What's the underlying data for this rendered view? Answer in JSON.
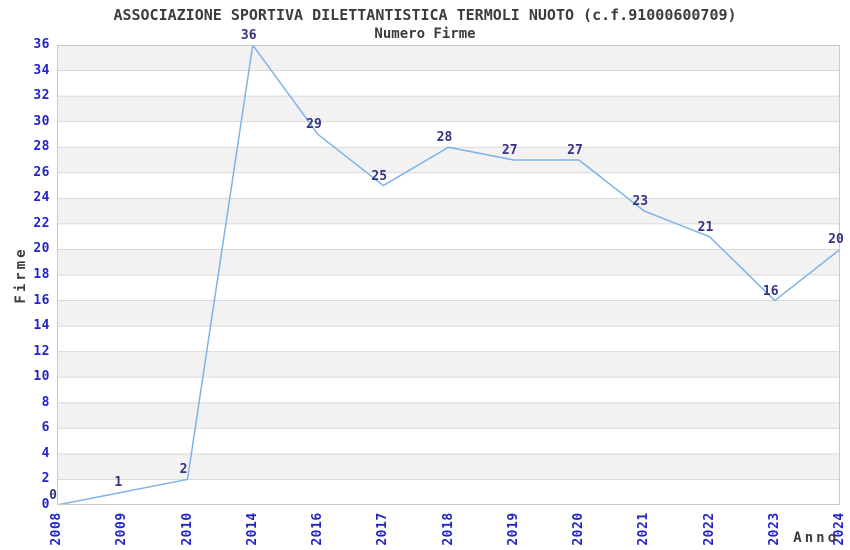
{
  "chart_data": {
    "type": "line",
    "title": "ASSOCIAZIONE SPORTIVA DILETTANTISTICA TERMOLI NUOTO (c.f.91000600709)",
    "subtitle": "Numero Firme",
    "xlabel": "Anno",
    "ylabel": "Firme",
    "categories": [
      "2008",
      "2009",
      "2010",
      "2014",
      "2016",
      "2017",
      "2018",
      "2019",
      "2020",
      "2021",
      "2022",
      "2023",
      "2024"
    ],
    "values": [
      0,
      1,
      2,
      36,
      29,
      25,
      28,
      27,
      27,
      23,
      21,
      16,
      20
    ],
    "ylim": [
      0,
      36
    ],
    "ytick_step": 2,
    "yticks": [
      0,
      2,
      4,
      6,
      8,
      10,
      12,
      14,
      16,
      18,
      20,
      22,
      24,
      26,
      28,
      30,
      32,
      34,
      36
    ],
    "grid": true,
    "legend": "none",
    "x_tick_rotation": -90,
    "background_bands": "alternating horizontal, gray on even intervals from top",
    "data_labels_shown": true,
    "colors": {
      "line": "#7db3e7",
      "tick_label": "#2323cc",
      "data_label": "#333380",
      "band": "#f2f2f2",
      "gridline": "#d9d9d9",
      "plot_border": "#c9c9c9",
      "text": "#3c3c3c",
      "background": "#ffffff"
    }
  }
}
